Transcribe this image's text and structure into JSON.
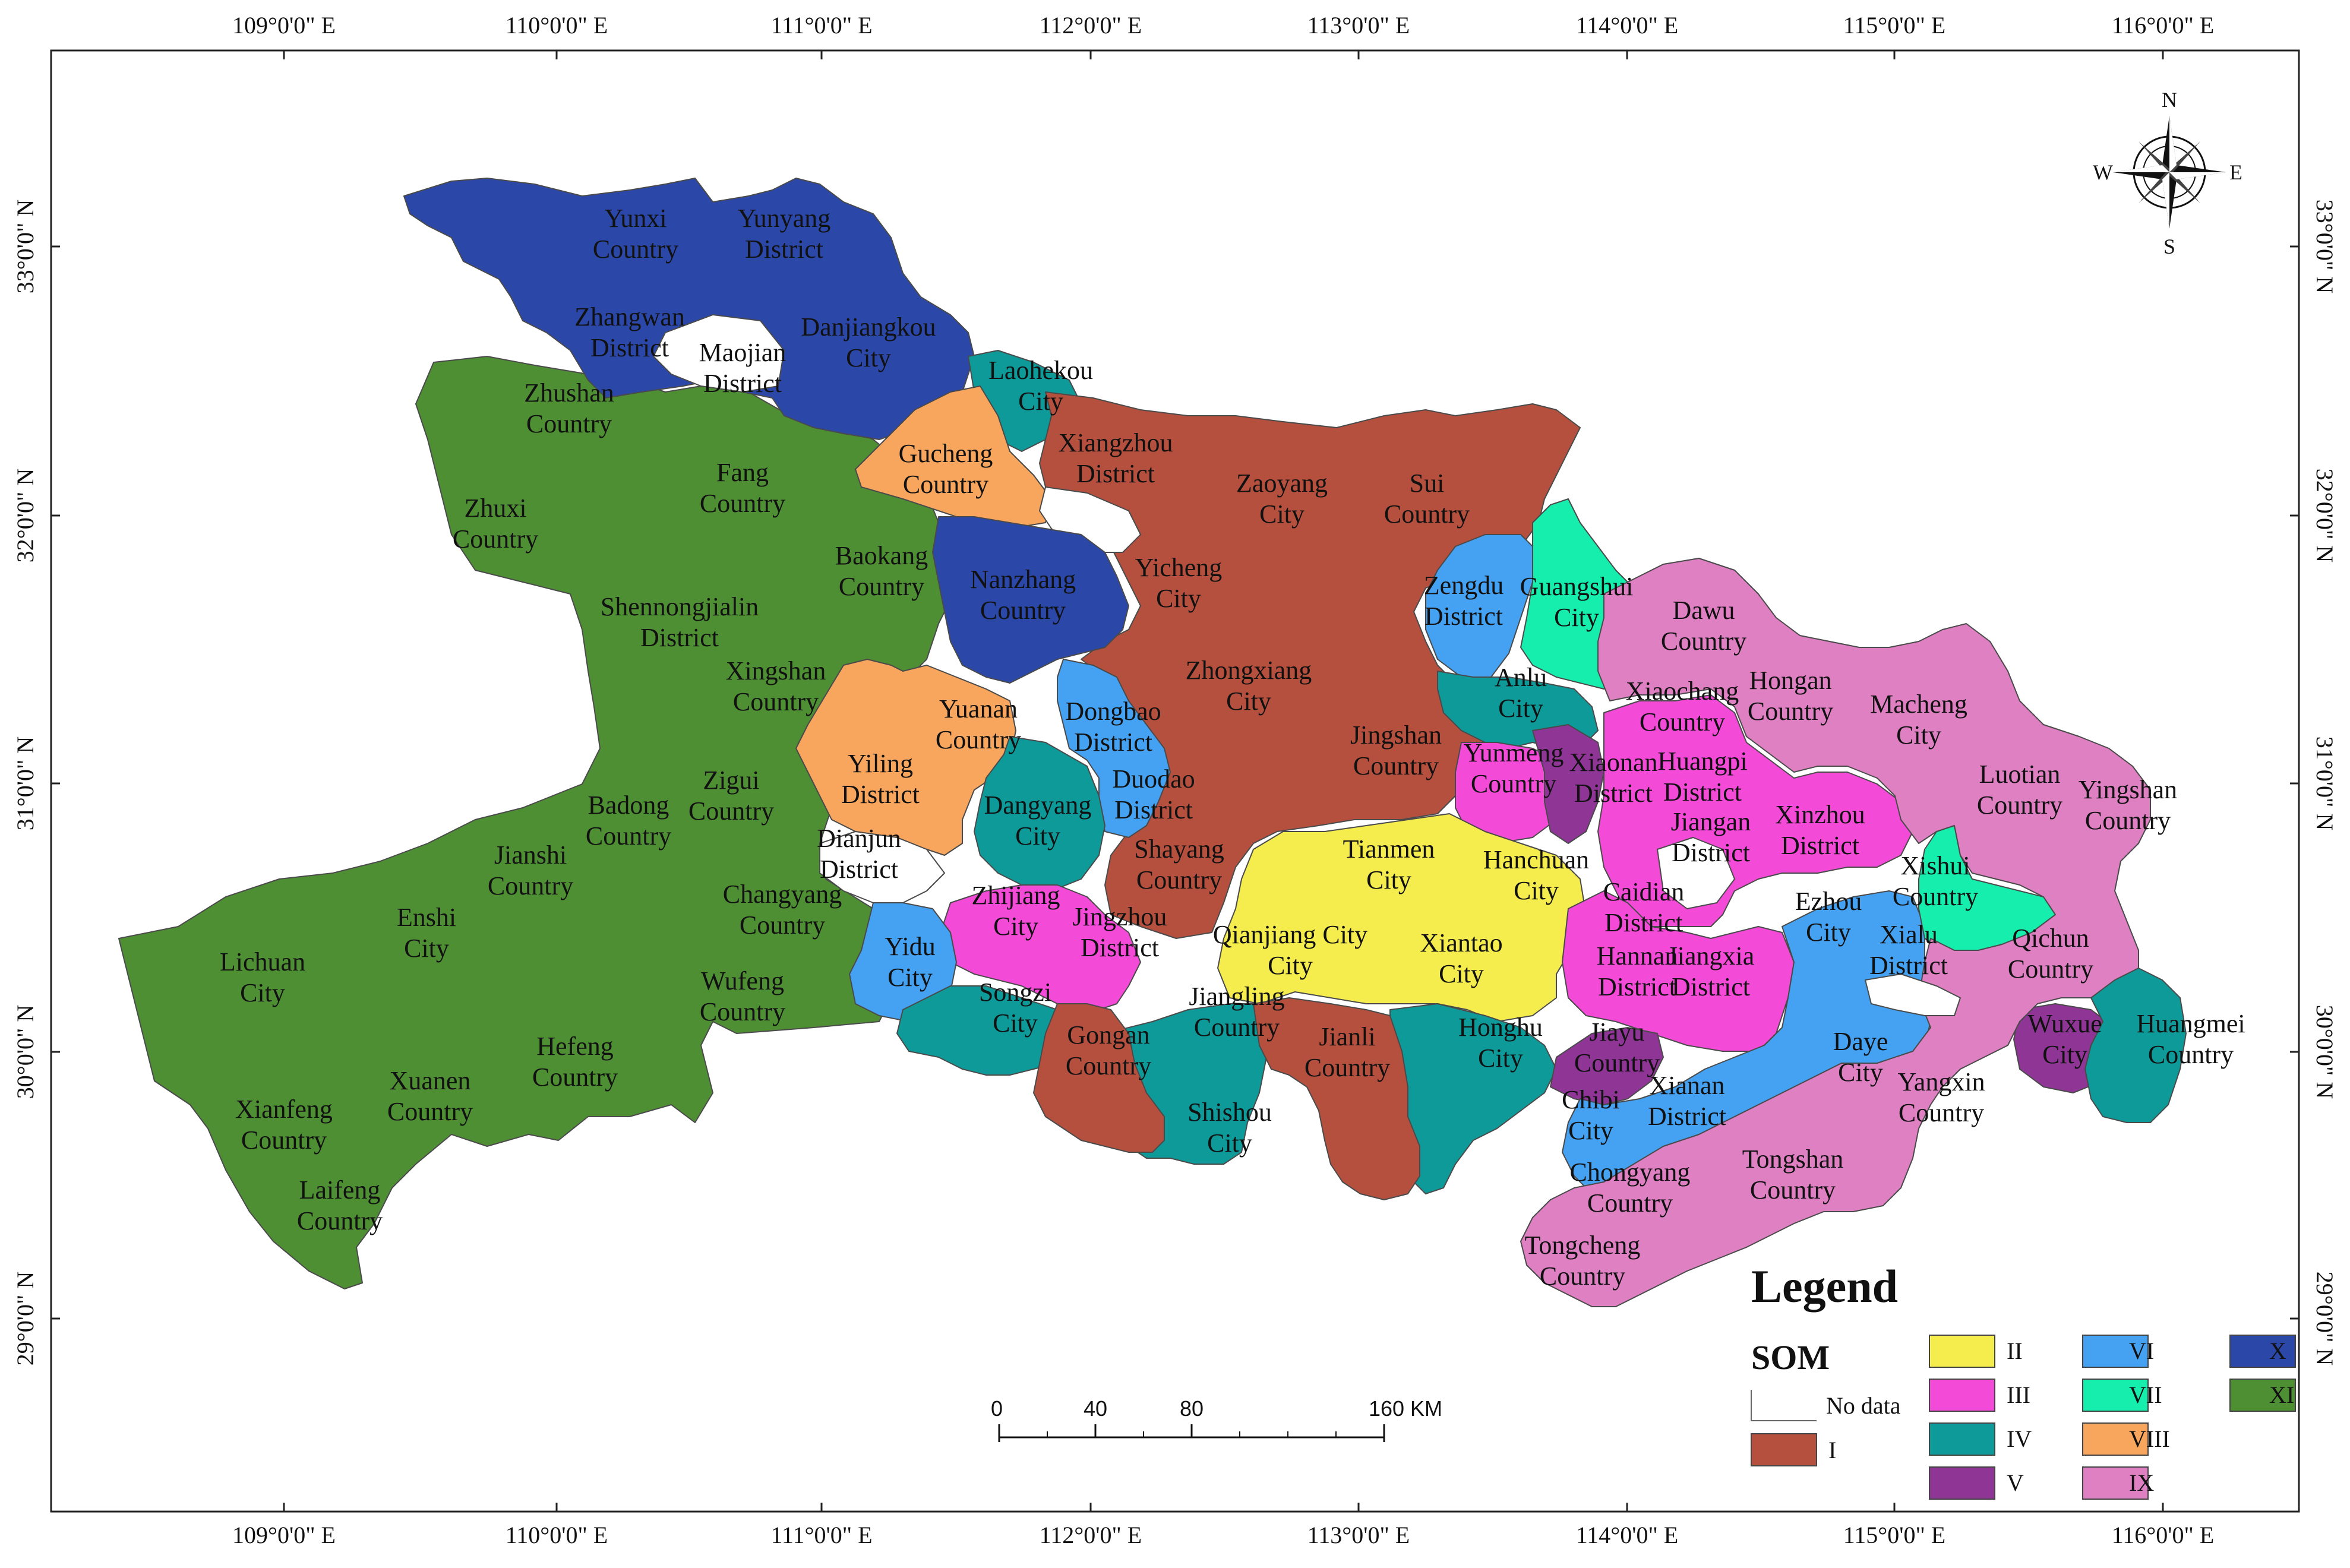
{
  "map": {
    "coordinate_labels": {
      "top_lon": [
        "109°0'0\" E",
        "110°0'0\" E",
        "111°0'0\" E",
        "112°0'0\" E",
        "113°0'0\" E",
        "114°0'0\" E",
        "115°0'0\" E",
        "116°0'0\" E"
      ],
      "bottom_lon": [
        "109°0'0\" E",
        "110°0'0\" E",
        "111°0'0\" E",
        "112°0'0\" E",
        "113°0'0\" E",
        "114°0'0\" E",
        "115°0'0\" E",
        "116°0'0\" E"
      ],
      "left_lat": [
        "33°0'0\" N",
        "32°0'0\" N",
        "31°0'0\" N",
        "30°0'0\" N",
        "29°0'0\" N"
      ],
      "right_lat": [
        "33°0'0\" N",
        "32°0'0\" N",
        "31°0'0\" N",
        "30°0'0\" N",
        "29°0'0\" N"
      ]
    },
    "compass": {
      "n": "N",
      "s": "S",
      "e": "E",
      "w": "W"
    },
    "scale_bar": {
      "labels": [
        "0",
        "40",
        "80",
        "160 KM"
      ]
    },
    "legend": {
      "title": "Legend",
      "subtitle": "SOM",
      "items": [
        {
          "label": "No data",
          "color": "#ffffff"
        },
        {
          "label": "I",
          "color": "#b5503f"
        },
        {
          "label": "II",
          "color": "#f5ec4e"
        },
        {
          "label": "III",
          "color": "#f44ad8"
        },
        {
          "label": "IV",
          "color": "#0f9a9a"
        },
        {
          "label": "V",
          "color": "#8f3596"
        },
        {
          "label": "VI",
          "color": "#45a2f2"
        },
        {
          "label": "VII",
          "color": "#16eeae"
        },
        {
          "label": "VIII",
          "color": "#f8a65e"
        },
        {
          "label": "IX",
          "color": "#de80c2"
        },
        {
          "label": "X",
          "color": "#2b47a8"
        },
        {
          "label": "XI",
          "color": "#4f8f34"
        }
      ]
    },
    "regions": [
      {
        "lines": [
          "Yunxi",
          "Country"
        ],
        "cls": "X"
      },
      {
        "lines": [
          "Yunyang",
          "District"
        ],
        "cls": "X"
      },
      {
        "lines": [
          "Zhangwan",
          "District"
        ],
        "cls": "X"
      },
      {
        "lines": [
          "Maojian",
          "District"
        ],
        "cls": "none"
      },
      {
        "lines": [
          "Danjiangkou",
          "City"
        ],
        "cls": "X"
      },
      {
        "lines": [
          "Laohekou",
          "City"
        ],
        "cls": "IV"
      },
      {
        "lines": [
          "Zhushan",
          "Country"
        ],
        "cls": "XI"
      },
      {
        "lines": [
          "Fang",
          "Country"
        ],
        "cls": "XI"
      },
      {
        "lines": [
          "Gucheng",
          "Country"
        ],
        "cls": "VIII"
      },
      {
        "lines": [
          "Xiangzhou",
          "District"
        ],
        "cls": "I"
      },
      {
        "lines": [
          "Zaoyang",
          "City"
        ],
        "cls": "I"
      },
      {
        "lines": [
          "Sui",
          "Country"
        ],
        "cls": "I"
      },
      {
        "lines": [
          "Zhuxi",
          "Country"
        ],
        "cls": "XI"
      },
      {
        "lines": [
          "Baokang",
          "Country"
        ],
        "cls": "XI"
      },
      {
        "lines": [
          "Nanzhang",
          "Country"
        ],
        "cls": "X"
      },
      {
        "lines": [
          "Yicheng",
          "City"
        ],
        "cls": "I"
      },
      {
        "lines": [
          "Shennongjialin",
          "District"
        ],
        "cls": "XI"
      },
      {
        "lines": [
          "Zengdu",
          "District"
        ],
        "cls": "VI"
      },
      {
        "lines": [
          "Guangshui",
          "City"
        ],
        "cls": "VII"
      },
      {
        "lines": [
          "Dawu",
          "Country"
        ],
        "cls": "IX"
      },
      {
        "lines": [
          "Xingshan",
          "Country"
        ],
        "cls": "XI"
      },
      {
        "lines": [
          "Zhongxiang",
          "City"
        ],
        "cls": "I"
      },
      {
        "lines": [
          "Anlu",
          "City"
        ],
        "cls": "IV"
      },
      {
        "lines": [
          "Xiaochang",
          "Country"
        ],
        "cls": "IX"
      },
      {
        "lines": [
          "Hongan",
          "Country"
        ],
        "cls": "IX"
      },
      {
        "lines": [
          "Macheng",
          "City"
        ],
        "cls": "IX"
      },
      {
        "lines": [
          "Yuanan",
          "Country"
        ],
        "cls": "VIII"
      },
      {
        "lines": [
          "Dongbao",
          "District"
        ],
        "cls": "VI"
      },
      {
        "lines": [
          "Jingshan",
          "Country"
        ],
        "cls": "I"
      },
      {
        "lines": [
          "Yiling",
          "District"
        ],
        "cls": "VIII"
      },
      {
        "lines": [
          "Zigui",
          "Country"
        ],
        "cls": "XI"
      },
      {
        "lines": [
          "Duodao",
          "District"
        ],
        "cls": "VI"
      },
      {
        "lines": [
          "Yunmeng",
          "Country"
        ],
        "cls": "III"
      },
      {
        "lines": [
          "Xiaonan",
          "District"
        ],
        "cls": "V"
      },
      {
        "lines": [
          "Huangpi",
          "District"
        ],
        "cls": "III"
      },
      {
        "lines": [
          "Luotian",
          "Country"
        ],
        "cls": "IX"
      },
      {
        "lines": [
          "Yingshan",
          "Country"
        ],
        "cls": "IX"
      },
      {
        "lines": [
          "Badong",
          "Country"
        ],
        "cls": "XI"
      },
      {
        "lines": [
          "Dangyang",
          "City"
        ],
        "cls": "IV"
      },
      {
        "lines": [
          "Jiangan",
          "District"
        ],
        "cls": "III"
      },
      {
        "lines": [
          "Xinzhou",
          "District"
        ],
        "cls": "III"
      },
      {
        "lines": [
          "Jianshi",
          "Country"
        ],
        "cls": "XI"
      },
      {
        "lines": [
          "Dianjun",
          "District"
        ],
        "cls": "none"
      },
      {
        "lines": [
          "Shayang",
          "Country"
        ],
        "cls": "I"
      },
      {
        "lines": [
          "Tianmen",
          "City"
        ],
        "cls": "II"
      },
      {
        "lines": [
          "Hanchuan",
          "City"
        ],
        "cls": "II"
      },
      {
        "lines": [
          "Xishui",
          "Country"
        ],
        "cls": "VII"
      },
      {
        "lines": [
          "Changyang",
          "Country"
        ],
        "cls": "XI"
      },
      {
        "lines": [
          "Zhijiang",
          "City"
        ],
        "cls": "III"
      },
      {
        "lines": [
          "Caidian",
          "District"
        ],
        "cls": "III"
      },
      {
        "lines": [
          "Enshi",
          "City"
        ],
        "cls": "XI"
      },
      {
        "lines": [
          "Jingzhou",
          "District"
        ],
        "cls": "III"
      },
      {
        "lines": [
          "Ezhou",
          "City"
        ],
        "cls": "VI"
      },
      {
        "lines": [
          "Xialu",
          "District"
        ],
        "cls": "VI"
      },
      {
        "lines": [
          "Qichun",
          "Country"
        ],
        "cls": "IX"
      },
      {
        "lines": [
          "Yidu",
          "City"
        ],
        "cls": "VI"
      },
      {
        "lines": [
          "Qianjiang City",
          "City"
        ],
        "cls": "II"
      },
      {
        "lines": [
          "Xiantao",
          "City"
        ],
        "cls": "II"
      },
      {
        "lines": [
          "Hannan",
          "District"
        ],
        "cls": "III"
      },
      {
        "lines": [
          "Jiangxia",
          "District"
        ],
        "cls": "III"
      },
      {
        "lines": [
          "Lichuan",
          "City"
        ],
        "cls": "XI"
      },
      {
        "lines": [
          "Wufeng",
          "Country"
        ],
        "cls": "XI"
      },
      {
        "lines": [
          "Songzi",
          "City"
        ],
        "cls": "IV"
      },
      {
        "lines": [
          "Jiangling",
          "Country"
        ],
        "cls": "IV"
      },
      {
        "lines": [
          "Wuxue",
          "City"
        ],
        "cls": "V"
      },
      {
        "lines": [
          "Huangmei",
          "Country"
        ],
        "cls": "IV"
      },
      {
        "lines": [
          "Gongan",
          "Country"
        ],
        "cls": "I"
      },
      {
        "lines": [
          "Honghu",
          "City"
        ],
        "cls": "IV"
      },
      {
        "lines": [
          "Jiayu",
          "Country"
        ],
        "cls": "V"
      },
      {
        "lines": [
          "Daye",
          "City"
        ],
        "cls": "VI"
      },
      {
        "lines": [
          "Hefeng",
          "Country"
        ],
        "cls": "XI"
      },
      {
        "lines": [
          "Jianli",
          "Country"
        ],
        "cls": "I"
      },
      {
        "lines": [
          "Yangxin",
          "Country"
        ],
        "cls": "IX"
      },
      {
        "lines": [
          "Xuanen",
          "Country"
        ],
        "cls": "XI"
      },
      {
        "lines": [
          "Xianan",
          "District"
        ],
        "cls": "VI"
      },
      {
        "lines": [
          "Chibi",
          "City"
        ],
        "cls": "VI"
      },
      {
        "lines": [
          "Xianfeng",
          "Country"
        ],
        "cls": "XI"
      },
      {
        "lines": [
          "Shishou",
          "City"
        ],
        "cls": "IV"
      },
      {
        "lines": [
          "Chongyang",
          "Country"
        ],
        "cls": "IX"
      },
      {
        "lines": [
          "Tongshan",
          "Country"
        ],
        "cls": "IX"
      },
      {
        "lines": [
          "Laifeng",
          "Country"
        ],
        "cls": "XI"
      },
      {
        "lines": [
          "Tongcheng",
          "Country"
        ],
        "cls": "IX"
      }
    ]
  }
}
